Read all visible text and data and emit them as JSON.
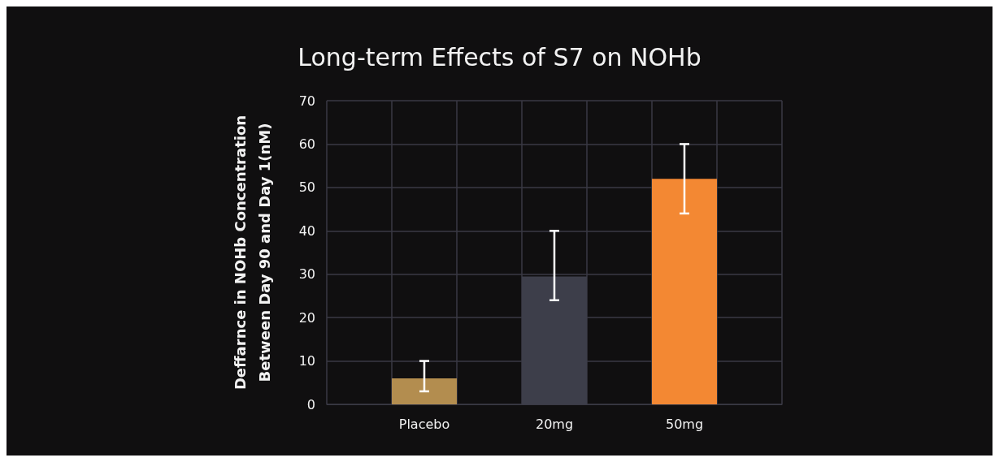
{
  "chart_data": {
    "type": "bar",
    "title": "Long-term Effects of S7 on NOHb",
    "ylabel": "Deffarnce in NOHb Concentration\nBetween Day 90 and Day 1(nM)",
    "categories": [
      null,
      "Placebo",
      null,
      "20mg",
      null,
      "50mg",
      null
    ],
    "values": [
      null,
      6,
      null,
      29.5,
      null,
      52,
      null
    ],
    "colors": [
      "#b38d4f",
      "#b38d4f",
      "#3d3e4a",
      "#3d3e4a",
      "#f38833",
      "#f38833",
      "#f38833"
    ],
    "errors": [
      null,
      [
        3,
        10
      ],
      null,
      [
        24,
        40
      ],
      null,
      [
        44,
        60
      ],
      null
    ],
    "ylim": [
      0,
      70
    ],
    "yticks": [
      0,
      10,
      20,
      30,
      40,
      50,
      60,
      70
    ],
    "grid": true
  }
}
